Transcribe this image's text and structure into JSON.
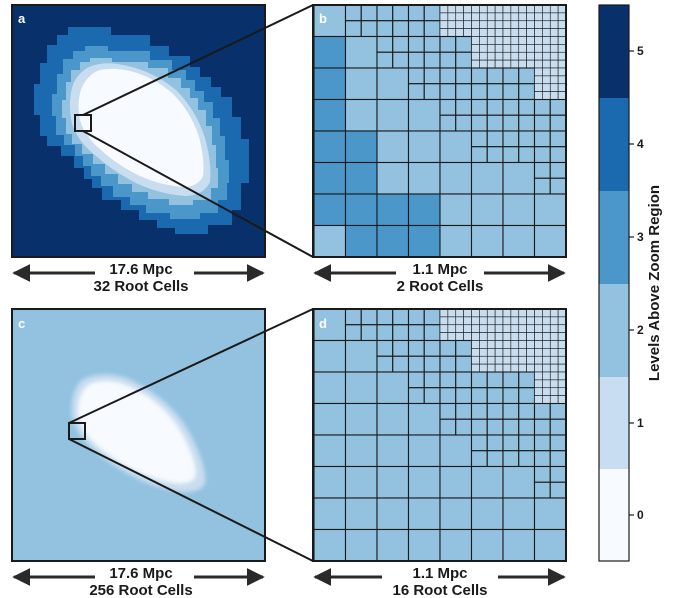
{
  "colors": {
    "level0": "#f7fbff",
    "level1": "#c9ddf0",
    "level2": "#92c2df",
    "level3": "#4b97c9",
    "level4": "#1b69af",
    "level5": "#08306b",
    "grid_line": "#1a1a1a",
    "arrow": "#2a2a2a",
    "text": "#1a1a1a"
  },
  "panels": [
    {
      "id": "a",
      "letter": "a",
      "scale_top": "17.6 Mpc",
      "scale_bottom": "32 Root Cells"
    },
    {
      "id": "b",
      "letter": "b",
      "scale_top": "1.1 Mpc",
      "scale_bottom": "2 Root Cells"
    },
    {
      "id": "c",
      "letter": "c",
      "scale_top": "17.6 Mpc",
      "scale_bottom": "256 Root Cells"
    },
    {
      "id": "d",
      "letter": "d",
      "scale_top": "1.1 Mpc",
      "scale_bottom": "16 Root Cells"
    }
  ],
  "colorbar": {
    "label": "Levels Above Zoom Region",
    "ticks": [
      "0",
      "1",
      "2",
      "3",
      "4",
      "5"
    ]
  }
}
